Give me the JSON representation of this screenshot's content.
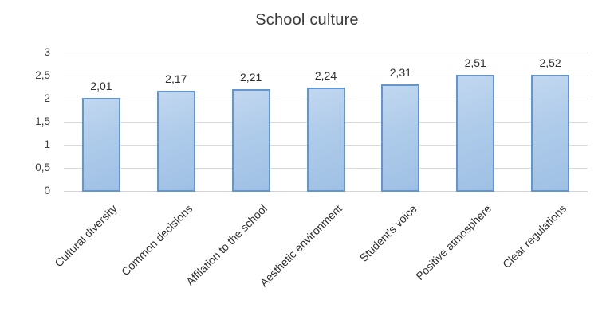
{
  "title": "School culture",
  "chart_data": {
    "type": "bar",
    "title": "School culture",
    "categories": [
      "Cultural diversity",
      "Common decisions",
      "Affilation to the school",
      "Aesthetic environment",
      "Student's voice",
      "Positive atmosphere",
      "Clear regulations"
    ],
    "values": [
      2.01,
      2.17,
      2.21,
      2.24,
      2.31,
      2.51,
      2.52
    ],
    "value_labels": [
      "2,01",
      "2,17",
      "2,21",
      "2,24",
      "2,31",
      "2,51",
      "2,52"
    ],
    "xlabel": "",
    "ylabel": "",
    "ylim": [
      0,
      3
    ],
    "yticks": [
      0,
      0.5,
      1,
      1.5,
      2,
      2.5,
      3
    ],
    "ytick_labels": [
      "0",
      "0,5",
      "1",
      "1,5",
      "2",
      "2,5",
      "3"
    ],
    "grid": true,
    "legend_position": "none",
    "colors": {
      "bar_fill": "#aecbea",
      "bar_fill_light": "#c2d7f0",
      "bar_border": "#6396ce",
      "gridline": "#d9d9d9",
      "text": "#2e2e2e",
      "title_text": "#3b3b3b"
    }
  }
}
